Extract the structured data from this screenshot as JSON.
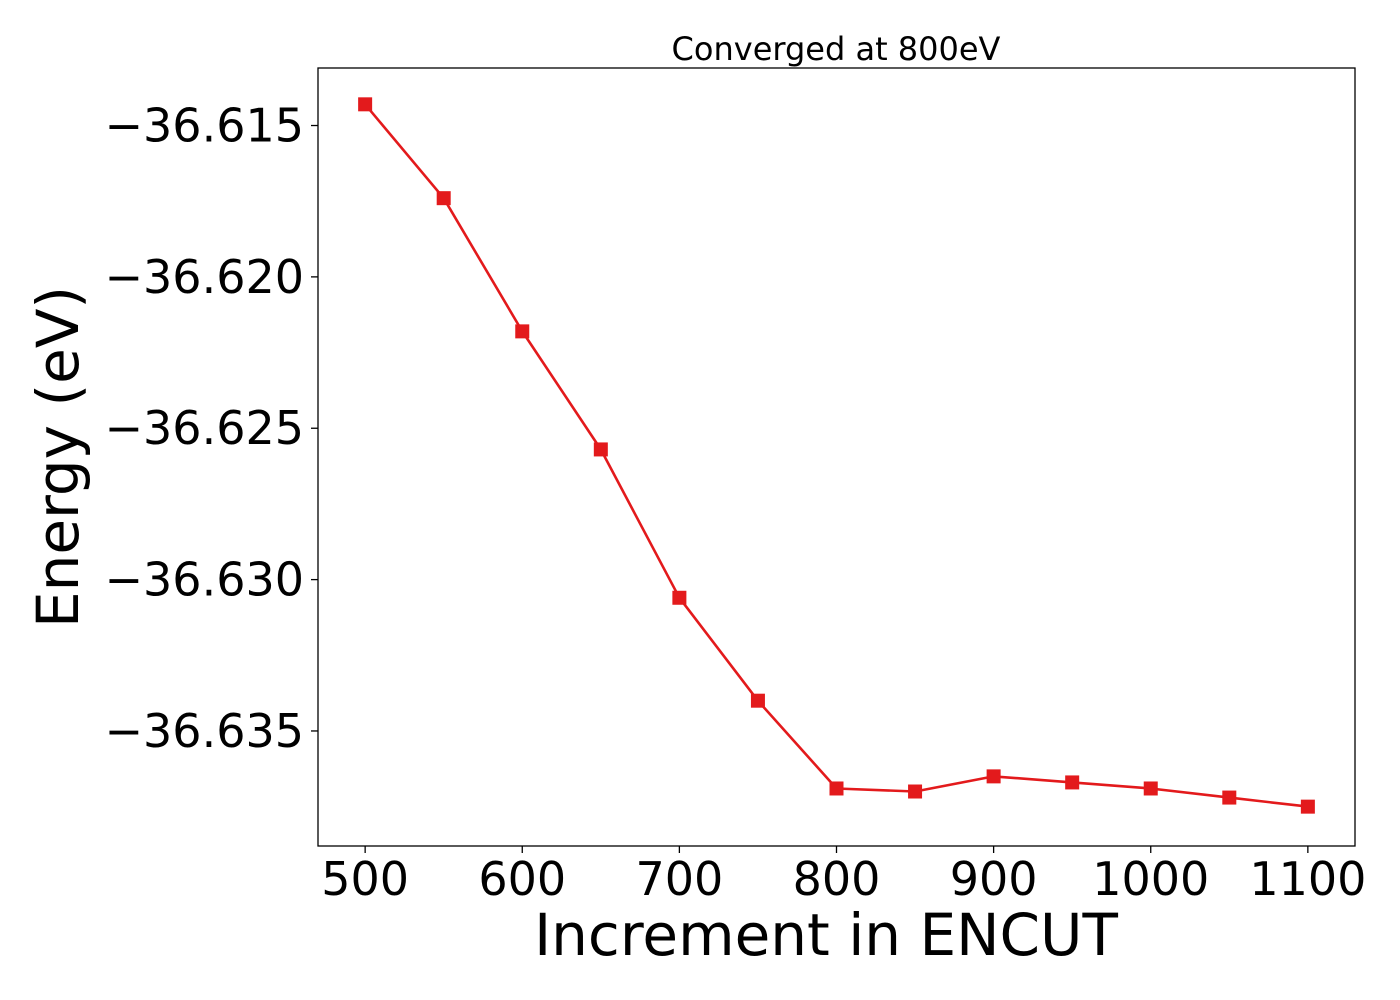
{
  "chart_data": {
    "type": "line",
    "title": "Converged at 800eV",
    "xlabel": "Increment in ENCUT",
    "ylabel": "Energy (eV)",
    "xlim": [
      470,
      1130
    ],
    "ylim": [
      -36.6388,
      -36.6131
    ],
    "xticks": [
      500,
      600,
      700,
      800,
      900,
      1000,
      1100
    ],
    "xtick_labels": [
      "500",
      "600",
      "700",
      "800",
      "900",
      "1000",
      "1100"
    ],
    "yticks": [
      -36.615,
      -36.62,
      -36.625,
      -36.63,
      -36.635
    ],
    "ytick_labels": [
      "−36.615",
      "−36.620",
      "−36.625",
      "−36.630",
      "−36.635"
    ],
    "grid": false,
    "series": [
      {
        "color": "#e31a1c",
        "marker": "square",
        "x": [
          500,
          550,
          600,
          650,
          700,
          750,
          800,
          850,
          900,
          950,
          1000,
          1050,
          1100
        ],
        "y": [
          -36.6143,
          -36.6174,
          -36.6218,
          -36.6257,
          -36.6306,
          -36.634,
          -36.6369,
          -36.637,
          -36.6365,
          -36.6367,
          -36.6369,
          -36.6372,
          -36.6375
        ]
      }
    ]
  }
}
